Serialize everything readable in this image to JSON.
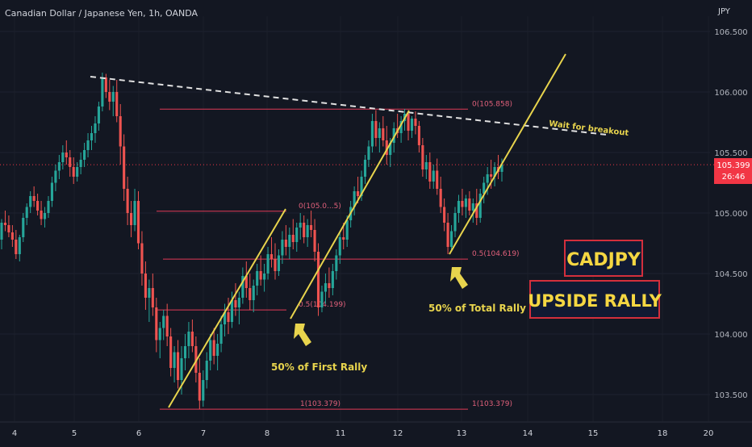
{
  "header": {
    "symbol_title": "Canadian Dollar / Japanese Yen, 1h, OANDA",
    "currency": "JPY"
  },
  "price_tag": {
    "price": "105.399",
    "countdown": "26:46"
  },
  "chart_data": {
    "type": "candlestick",
    "y_ticks": [
      "106.500",
      "106.000",
      "105.500",
      "105.000",
      "104.500",
      "104.000",
      "103.500"
    ],
    "y_tick_values": [
      106.5,
      106.0,
      105.5,
      105.0,
      104.5,
      104.0,
      103.5
    ],
    "ylim": [
      103.35,
      106.75
    ],
    "x_ticks": [
      "4",
      "5",
      "6",
      "7",
      "8",
      "11",
      "12",
      "13",
      "14",
      "15",
      "18",
      "20"
    ],
    "current_price": 105.399,
    "fib_levels": [
      {
        "id": "fib-top-0",
        "label": "0(105.858)",
        "value": 105.858
      },
      {
        "id": "fib-top-1",
        "label": "1(103.379)",
        "value": 103.379
      },
      {
        "id": "fib-top-1-right",
        "label": "1(103.379)",
        "value": 103.379
      },
      {
        "id": "fib-first-0",
        "label": "0(105.0...5)",
        "value": 105.015
      },
      {
        "id": "fib-first-05",
        "label": "0.5(104.199)",
        "value": 104.199
      },
      {
        "id": "fib-total-05",
        "label": "0.5(104.619)",
        "value": 104.619
      }
    ],
    "annotations": {
      "breakout": "Wait for breakout",
      "first_rally": "50% of First Rally",
      "total_rally": "50% of Total Rally",
      "badge_symbol": "CADJPY",
      "badge_text": "UPSIDE RALLY"
    },
    "candles": [
      [
        104.78,
        104.95,
        104.7,
        104.92
      ],
      [
        104.92,
        105.02,
        104.85,
        104.9
      ],
      [
        104.9,
        104.98,
        104.8,
        104.84
      ],
      [
        104.84,
        104.9,
        104.72,
        104.78
      ],
      [
        104.78,
        104.86,
        104.62,
        104.66
      ],
      [
        104.66,
        104.82,
        104.6,
        104.8
      ],
      [
        104.8,
        105.0,
        104.76,
        104.96
      ],
      [
        104.96,
        105.08,
        104.9,
        105.05
      ],
      [
        105.05,
        105.18,
        105.0,
        105.14
      ],
      [
        105.14,
        105.22,
        105.05,
        105.1
      ],
      [
        105.1,
        105.16,
        104.98,
        105.02
      ],
      [
        105.02,
        105.1,
        104.9,
        104.95
      ],
      [
        104.95,
        105.05,
        104.88,
        105.0
      ],
      [
        105.0,
        105.14,
        104.96,
        105.1
      ],
      [
        105.1,
        105.3,
        105.05,
        105.25
      ],
      [
        105.25,
        105.4,
        105.18,
        105.35
      ],
      [
        105.35,
        105.48,
        105.28,
        105.42
      ],
      [
        105.42,
        105.56,
        105.36,
        105.5
      ],
      [
        105.5,
        105.6,
        105.4,
        105.46
      ],
      [
        105.46,
        105.52,
        105.3,
        105.38
      ],
      [
        105.38,
        105.46,
        105.24,
        105.3
      ],
      [
        105.3,
        105.42,
        105.26,
        105.38
      ],
      [
        105.38,
        105.5,
        105.32,
        105.44
      ],
      [
        105.44,
        105.58,
        105.38,
        105.52
      ],
      [
        105.52,
        105.66,
        105.46,
        105.6
      ],
      [
        105.6,
        105.72,
        105.52,
        105.66
      ],
      [
        105.66,
        105.8,
        105.58,
        105.74
      ],
      [
        105.74,
        105.92,
        105.68,
        105.88
      ],
      [
        105.88,
        106.16,
        105.84,
        106.12
      ],
      [
        106.12,
        106.15,
        105.95,
        106.0
      ],
      [
        106.0,
        106.1,
        105.85,
        105.92
      ],
      [
        105.92,
        106.05,
        105.8,
        106.0
      ],
      [
        106.0,
        106.1,
        105.75,
        105.8
      ],
      [
        105.8,
        105.9,
        105.4,
        105.55
      ],
      [
        105.55,
        105.65,
        105.1,
        105.2
      ],
      [
        105.2,
        105.3,
        104.9,
        105.0
      ],
      [
        105.0,
        105.1,
        104.8,
        104.9
      ],
      [
        104.9,
        105.2,
        104.85,
        105.1
      ],
      [
        105.1,
        105.18,
        104.7,
        104.75
      ],
      [
        104.75,
        104.85,
        104.4,
        104.5
      ],
      [
        104.5,
        104.6,
        104.2,
        104.3
      ],
      [
        104.3,
        104.45,
        104.1,
        104.38
      ],
      [
        104.38,
        104.5,
        104.15,
        104.22
      ],
      [
        104.22,
        104.3,
        103.85,
        103.95
      ],
      [
        103.95,
        104.1,
        103.8,
        104.05
      ],
      [
        104.05,
        104.2,
        103.95,
        104.15
      ],
      [
        104.15,
        104.25,
        103.9,
        103.98
      ],
      [
        103.98,
        104.05,
        103.65,
        103.72
      ],
      [
        103.72,
        103.9,
        103.6,
        103.85
      ],
      [
        103.85,
        103.95,
        103.55,
        103.62
      ],
      [
        103.62,
        103.9,
        103.5,
        103.8
      ],
      [
        103.8,
        104.0,
        103.7,
        103.9
      ],
      [
        103.9,
        104.1,
        103.8,
        104.02
      ],
      [
        104.02,
        104.12,
        103.85,
        103.9
      ],
      [
        103.9,
        103.98,
        103.6,
        103.68
      ],
      [
        103.68,
        103.8,
        103.38,
        103.45
      ],
      [
        103.45,
        103.7,
        103.4,
        103.62
      ],
      [
        103.62,
        103.85,
        103.55,
        103.78
      ],
      [
        103.78,
        104.0,
        103.7,
        103.95
      ],
      [
        103.95,
        104.05,
        103.75,
        103.82
      ],
      [
        103.82,
        104.0,
        103.7,
        103.92
      ],
      [
        103.92,
        104.15,
        103.85,
        104.08
      ],
      [
        104.08,
        104.25,
        103.98,
        104.18
      ],
      [
        104.18,
        104.3,
        104.0,
        104.1
      ],
      [
        104.1,
        104.35,
        104.05,
        104.28
      ],
      [
        104.28,
        104.42,
        104.15,
        104.22
      ],
      [
        104.22,
        104.35,
        104.08,
        104.3
      ],
      [
        104.3,
        104.55,
        104.25,
        104.48
      ],
      [
        104.48,
        104.6,
        104.3,
        104.38
      ],
      [
        104.38,
        104.5,
        104.2,
        104.28
      ],
      [
        104.28,
        104.45,
        104.18,
        104.4
      ],
      [
        104.4,
        104.58,
        104.32,
        104.52
      ],
      [
        104.52,
        104.65,
        104.4,
        104.45
      ],
      [
        104.45,
        104.58,
        104.35,
        104.5
      ],
      [
        104.5,
        104.72,
        104.45,
        104.66
      ],
      [
        104.66,
        104.8,
        104.55,
        104.62
      ],
      [
        104.62,
        104.75,
        104.45,
        104.52
      ],
      [
        104.52,
        104.7,
        104.48,
        104.65
      ],
      [
        104.65,
        104.85,
        104.58,
        104.78
      ],
      [
        104.78,
        104.9,
        104.65,
        104.72
      ],
      [
        104.72,
        104.88,
        104.62,
        104.82
      ],
      [
        104.82,
        104.95,
        104.7,
        104.76
      ],
      [
        104.76,
        104.92,
        104.68,
        104.88
      ],
      [
        104.88,
        105.0,
        104.78,
        104.92
      ],
      [
        104.92,
        104.98,
        104.75,
        104.8
      ],
      [
        104.8,
        104.95,
        104.72,
        104.9
      ],
      [
        104.9,
        105.02,
        104.8,
        104.86
      ],
      [
        104.86,
        104.95,
        104.6,
        104.68
      ],
      [
        104.68,
        104.75,
        104.15,
        104.22
      ],
      [
        104.22,
        104.4,
        104.18,
        104.35
      ],
      [
        104.35,
        104.5,
        104.25,
        104.42
      ],
      [
        104.42,
        104.55,
        104.3,
        104.38
      ],
      [
        104.38,
        104.58,
        104.32,
        104.52
      ],
      [
        104.52,
        104.7,
        104.45,
        104.65
      ],
      [
        104.65,
        104.85,
        104.58,
        104.8
      ],
      [
        104.8,
        104.92,
        104.7,
        104.78
      ],
      [
        104.78,
        104.98,
        104.72,
        104.94
      ],
      [
        104.94,
        105.1,
        104.88,
        105.05
      ],
      [
        105.05,
        105.22,
        104.98,
        105.18
      ],
      [
        105.18,
        105.3,
        105.08,
        105.14
      ],
      [
        105.14,
        105.35,
        105.1,
        105.3
      ],
      [
        105.3,
        105.48,
        105.24,
        105.44
      ],
      [
        105.44,
        105.6,
        105.38,
        105.55
      ],
      [
        105.55,
        105.82,
        105.5,
        105.76
      ],
      [
        105.76,
        105.85,
        105.55,
        105.62
      ],
      [
        105.62,
        105.75,
        105.5,
        105.7
      ],
      [
        105.7,
        105.8,
        105.55,
        105.6
      ],
      [
        105.6,
        105.72,
        105.4,
        105.48
      ],
      [
        105.48,
        105.62,
        105.38,
        105.58
      ],
      [
        105.58,
        105.75,
        105.5,
        105.7
      ],
      [
        105.7,
        105.82,
        105.62,
        105.66
      ],
      [
        105.66,
        105.8,
        105.58,
        105.76
      ],
      [
        105.76,
        105.86,
        105.68,
        105.82
      ],
      [
        105.82,
        105.85,
        105.6,
        105.68
      ],
      [
        105.68,
        105.8,
        105.62,
        105.78
      ],
      [
        105.78,
        105.84,
        105.65,
        105.72
      ],
      [
        105.72,
        105.76,
        105.5,
        105.56
      ],
      [
        105.56,
        105.62,
        105.3,
        105.36
      ],
      [
        105.36,
        105.48,
        105.28,
        105.42
      ],
      [
        105.42,
        105.5,
        105.2,
        105.26
      ],
      [
        105.26,
        105.4,
        105.2,
        105.35
      ],
      [
        105.35,
        105.45,
        105.15,
        105.2
      ],
      [
        105.2,
        105.3,
        105.0,
        105.05
      ],
      [
        105.05,
        105.12,
        104.85,
        104.92
      ],
      [
        104.92,
        105.0,
        104.66,
        104.72
      ],
      [
        104.72,
        104.9,
        104.68,
        104.85
      ],
      [
        104.85,
        105.05,
        104.8,
        105.0
      ],
      [
        105.0,
        105.15,
        104.92,
        105.1
      ],
      [
        105.1,
        105.2,
        104.98,
        105.05
      ],
      [
        105.05,
        105.15,
        104.96,
        105.12
      ],
      [
        105.12,
        105.18,
        104.98,
        105.02
      ],
      [
        105.02,
        105.12,
        104.92,
        105.08
      ],
      [
        105.08,
        105.2,
        104.9,
        104.96
      ],
      [
        104.96,
        105.2,
        104.92,
        105.16
      ],
      [
        105.16,
        105.3,
        105.08,
        105.25
      ],
      [
        105.25,
        105.38,
        105.15,
        105.32
      ],
      [
        105.32,
        105.44,
        105.2,
        105.3
      ],
      [
        105.3,
        105.42,
        105.22,
        105.38
      ],
      [
        105.38,
        105.48,
        105.28,
        105.34
      ],
      [
        105.34,
        105.45,
        105.26,
        105.4
      ]
    ]
  }
}
